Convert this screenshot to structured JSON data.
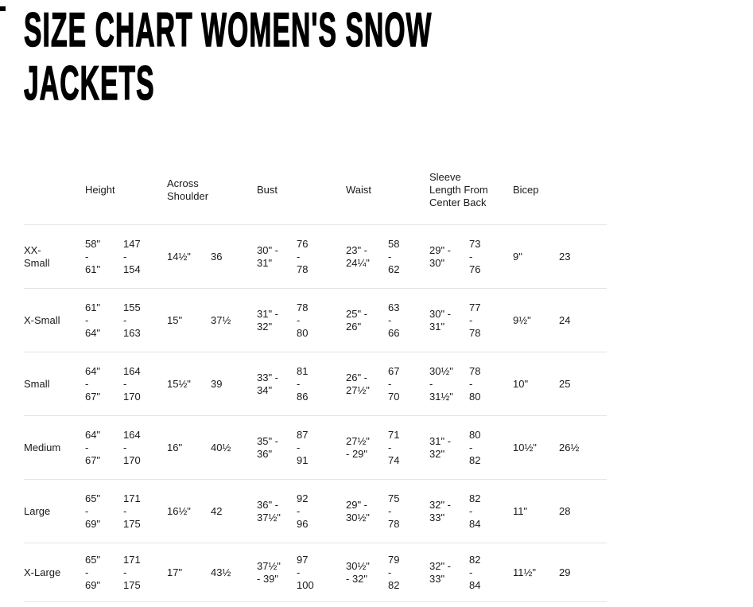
{
  "page": {
    "title_line1": "SIZE CHART WOMEN'S SNOW",
    "title_line2": "JACKETS"
  },
  "table": {
    "headers": [
      "Height",
      "Across\nShoulder",
      "Bust",
      "Waist",
      "Sleeve\nLength From\nCenter Back",
      "Bicep"
    ],
    "rows": [
      {
        "size": "XX-\nSmall",
        "values": [
          "58\"\n-\n61\"",
          "147\n-\n154",
          "14½\"",
          "36",
          "30\" -\n31\"",
          "76\n-\n78",
          "23\" -\n24¼\"",
          "58\n-\n62",
          "29\" -\n30\"",
          "73\n-\n76",
          "9\"",
          "23"
        ]
      },
      {
        "size": "X-Small",
        "values": [
          "61\"\n-\n64\"",
          "155\n-\n163",
          "15\"",
          "37½",
          "31\" -\n32\"",
          "78\n-\n80",
          "25\" -\n26\"",
          "63\n-\n66",
          "30\" -\n31\"",
          "77\n-\n78",
          "9½\"",
          "24"
        ]
      },
      {
        "size": "Small",
        "values": [
          "64\"\n-\n67\"",
          "164\n-\n170",
          "15½\"",
          "39",
          "33\" -\n34\"",
          "81\n-\n86",
          "26\" -\n27½\"",
          "67\n-\n70",
          "30½\"\n-\n31½\"",
          "78\n-\n80",
          "10\"",
          "25"
        ]
      },
      {
        "size": "Medium",
        "values": [
          "64\"\n-\n67\"",
          "164\n-\n170",
          "16\"",
          "40½",
          "35\" -\n36\"",
          "87\n-\n91",
          "27½\"\n- 29\"",
          "71\n-\n74",
          "31\" -\n32\"",
          "80\n-\n82",
          "10½\"",
          "26½"
        ]
      },
      {
        "size": "Large",
        "values": [
          "65\"\n-\n69\"",
          "171\n-\n175",
          "16½\"",
          "42",
          "36\" -\n37½\"",
          "92\n-\n96",
          "29\" -\n30½\"",
          "75\n-\n78",
          "32\" -\n33\"",
          "82\n-\n84",
          "11\"",
          "28"
        ]
      },
      {
        "size": "X-Large",
        "values": [
          "65\"\n-\n69\"",
          "171\n-\n175",
          "17\"",
          "43½",
          "37½\"\n- 39\"",
          "97\n-\n100",
          "30½\"\n- 32\"",
          "79\n-\n82",
          "32\" -\n33\"",
          "82\n-\n84",
          "11½\"",
          "29"
        ]
      }
    ]
  }
}
